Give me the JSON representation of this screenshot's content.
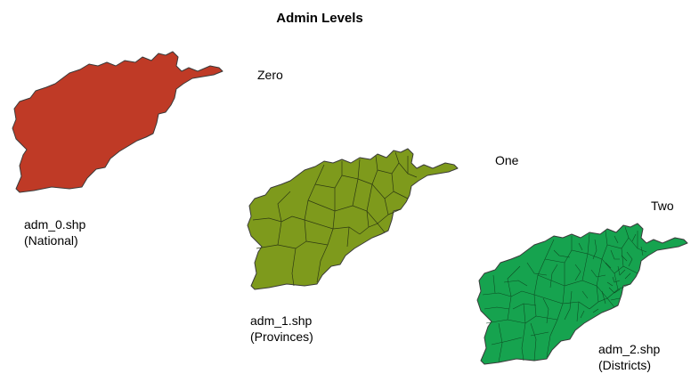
{
  "title": "Admin Levels",
  "levels": [
    {
      "level_name": "Zero",
      "file": "adm_0.shp",
      "description": "(National)",
      "color": "#bf3a26"
    },
    {
      "level_name": "One",
      "file": "adm_1.shp",
      "description": "(Provinces)",
      "color": "#7e9a1c"
    },
    {
      "level_name": "Two",
      "file": "adm_2.shp",
      "description": "(Districts)",
      "color": "#16a34f"
    }
  ]
}
